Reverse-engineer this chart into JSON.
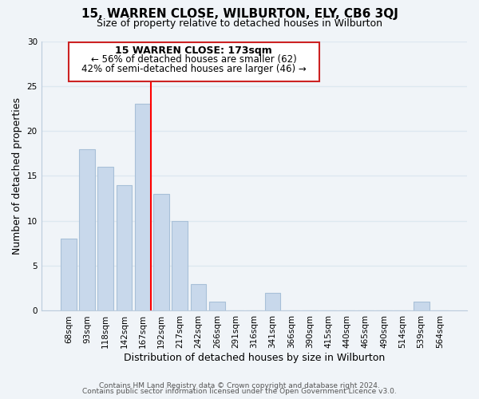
{
  "title": "15, WARREN CLOSE, WILBURTON, ELY, CB6 3QJ",
  "subtitle": "Size of property relative to detached houses in Wilburton",
  "xlabel": "Distribution of detached houses by size in Wilburton",
  "ylabel": "Number of detached properties",
  "footnote1": "Contains HM Land Registry data © Crown copyright and database right 2024.",
  "footnote2": "Contains public sector information licensed under the Open Government Licence v3.0.",
  "bar_labels": [
    "68sqm",
    "93sqm",
    "118sqm",
    "142sqm",
    "167sqm",
    "192sqm",
    "217sqm",
    "242sqm",
    "266sqm",
    "291sqm",
    "316sqm",
    "341sqm",
    "366sqm",
    "390sqm",
    "415sqm",
    "440sqm",
    "465sqm",
    "490sqm",
    "514sqm",
    "539sqm",
    "564sqm"
  ],
  "bar_values": [
    8,
    18,
    16,
    14,
    23,
    13,
    10,
    3,
    1,
    0,
    0,
    2,
    0,
    0,
    0,
    0,
    0,
    0,
    0,
    1,
    0
  ],
  "bar_color": "#c8d8eb",
  "bar_edgecolor": "#a8c0d8",
  "red_line_index": 4,
  "ylim": [
    0,
    30
  ],
  "yticks": [
    0,
    5,
    10,
    15,
    20,
    25,
    30
  ],
  "annotation_title": "15 WARREN CLOSE: 173sqm",
  "annotation_line1": "← 56% of detached houses are smaller (62)",
  "annotation_line2": "42% of semi-detached houses are larger (46) →",
  "background_color": "#f0f4f8",
  "grid_color": "#dde8f0"
}
